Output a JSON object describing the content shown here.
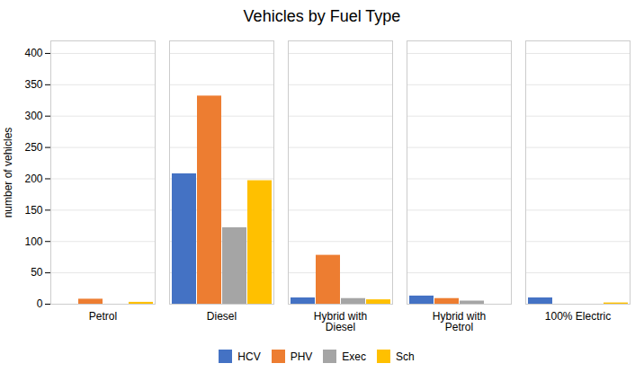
{
  "chart_data": {
    "type": "bar",
    "title": "Vehicles by Fuel Type",
    "ylabel": "number of vehicles",
    "categories": [
      "Petrol",
      "Diesel",
      "Hybrid with\nDiesel",
      "Hybrid with\nPetrol",
      "100% Electric"
    ],
    "series": [
      {
        "name": "HCV",
        "color": "#4472C4",
        "values": [
          0,
          208,
          10,
          13,
          10
        ]
      },
      {
        "name": "PHV",
        "color": "#ED7D31",
        "values": [
          8,
          332,
          78,
          9,
          0
        ]
      },
      {
        "name": "Exec",
        "color": "#A5A5A5",
        "values": [
          0,
          122,
          9,
          5,
          0
        ]
      },
      {
        "name": "Sch",
        "color": "#FFC000",
        "values": [
          3,
          197,
          7,
          0,
          2
        ]
      }
    ],
    "ylim": [
      0,
      420
    ],
    "yticks": [
      0,
      50,
      100,
      150,
      200,
      250,
      300,
      350,
      400
    ],
    "grid": true,
    "legend": "bottom"
  }
}
